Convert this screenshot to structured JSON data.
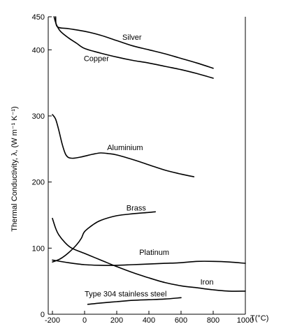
{
  "chart_data": {
    "type": "line",
    "title": "",
    "xlabel": "T(°C)",
    "ylabel": "Thermal Conductivity, λ, (W m⁻¹ K⁻¹)",
    "xlim": [
      -200,
      1000
    ],
    "ylim": [
      0,
      450
    ],
    "xticks": [
      -200,
      0,
      200,
      400,
      600,
      800,
      1000
    ],
    "yticks": [
      0,
      100,
      200,
      300,
      400,
      450
    ],
    "xtick_labels": [
      "-200",
      "0",
      "200",
      "400",
      "600",
      "800",
      "1000"
    ],
    "ytick_labels": [
      "0",
      "100",
      "200",
      "300",
      "400",
      "450"
    ],
    "grid": false,
    "legend": "none (inline labels)",
    "series": [
      {
        "name": "Silver",
        "label_at": [
          235,
          415
        ],
        "points": [
          [
            -180,
            450
          ],
          [
            -170,
            435
          ],
          [
            -100,
            432
          ],
          [
            0,
            428
          ],
          [
            100,
            422
          ],
          [
            200,
            414
          ],
          [
            300,
            406
          ],
          [
            400,
            400
          ],
          [
            500,
            394
          ],
          [
            600,
            387
          ],
          [
            700,
            380
          ],
          [
            800,
            372
          ]
        ]
      },
      {
        "name": "Copper",
        "label_at": [
          -5,
          383
        ],
        "points": [
          [
            -190,
            450
          ],
          [
            -175,
            438
          ],
          [
            -150,
            428
          ],
          [
            -100,
            418
          ],
          [
            -50,
            410
          ],
          [
            0,
            402
          ],
          [
            100,
            395
          ],
          [
            200,
            389
          ],
          [
            300,
            384
          ],
          [
            400,
            380
          ],
          [
            500,
            375
          ],
          [
            600,
            370
          ],
          [
            700,
            364
          ],
          [
            800,
            357
          ]
        ]
      },
      {
        "name": "Aluminium",
        "label_at": [
          140,
          248
        ],
        "points": [
          [
            -200,
            302
          ],
          [
            -180,
            295
          ],
          [
            -160,
            278
          ],
          [
            -140,
            258
          ],
          [
            -120,
            243
          ],
          [
            -100,
            237
          ],
          [
            -70,
            236
          ],
          [
            -20,
            238
          ],
          [
            50,
            242
          ],
          [
            100,
            244
          ],
          [
            150,
            243
          ],
          [
            200,
            241
          ],
          [
            300,
            234
          ],
          [
            400,
            226
          ],
          [
            500,
            218
          ],
          [
            600,
            212
          ],
          [
            680,
            208
          ]
        ]
      },
      {
        "name": "Brass",
        "label_at": [
          260,
          157
        ],
        "points": [
          [
            -200,
            79
          ],
          [
            -150,
            84
          ],
          [
            -100,
            93
          ],
          [
            -50,
            105
          ],
          [
            -20,
            115
          ],
          [
            0,
            125
          ],
          [
            50,
            135
          ],
          [
            100,
            142
          ],
          [
            200,
            149
          ],
          [
            300,
            152
          ],
          [
            400,
            154
          ],
          [
            440,
            155
          ]
        ]
      },
      {
        "name": "Platinum",
        "label_at": [
          340,
          90
        ],
        "points": [
          [
            -200,
            82
          ],
          [
            -100,
            78
          ],
          [
            0,
            75
          ],
          [
            100,
            74
          ],
          [
            200,
            74
          ],
          [
            300,
            75
          ],
          [
            400,
            76
          ],
          [
            500,
            77
          ],
          [
            600,
            78
          ],
          [
            700,
            80
          ],
          [
            800,
            80
          ],
          [
            900,
            79
          ],
          [
            1000,
            77
          ]
        ]
      },
      {
        "name": "Iron",
        "label_at": [
          720,
          45
        ],
        "points": [
          [
            -200,
            145
          ],
          [
            -180,
            130
          ],
          [
            -160,
            120
          ],
          [
            -120,
            108
          ],
          [
            -80,
            100
          ],
          [
            0,
            92
          ],
          [
            100,
            82
          ],
          [
            200,
            72
          ],
          [
            300,
            63
          ],
          [
            400,
            55
          ],
          [
            500,
            48
          ],
          [
            600,
            43
          ],
          [
            700,
            40
          ],
          [
            800,
            37
          ],
          [
            900,
            35
          ],
          [
            1000,
            35
          ]
        ]
      },
      {
        "name": "Type 304 stainless steel",
        "label_at": [
          0,
          27
        ],
        "points": [
          [
            20,
            15
          ],
          [
            100,
            17
          ],
          [
            200,
            19
          ],
          [
            300,
            21
          ],
          [
            400,
            22
          ],
          [
            500,
            23
          ],
          [
            600,
            25
          ]
        ]
      }
    ]
  }
}
